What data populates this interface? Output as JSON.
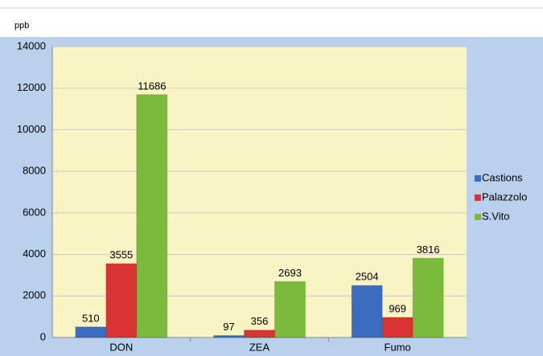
{
  "chart_data": {
    "type": "bar",
    "y_label": "ppb",
    "categories": [
      "DON",
      "ZEA",
      "Fumo"
    ],
    "series": [
      {
        "name": "Castions",
        "color": "#3c6cc0",
        "values": [
          510,
          97,
          2504
        ]
      },
      {
        "name": "Palazzolo",
        "color": "#d83434",
        "values": [
          3555,
          356,
          969
        ]
      },
      {
        "name": "S.Vito",
        "color": "#7cba3c",
        "values": [
          11686,
          2693,
          3816
        ]
      }
    ],
    "ylim": [
      0,
      14000
    ],
    "yticks": [
      0,
      2000,
      4000,
      6000,
      8000,
      10000,
      12000,
      14000
    ],
    "grid": true,
    "legend": "right"
  }
}
